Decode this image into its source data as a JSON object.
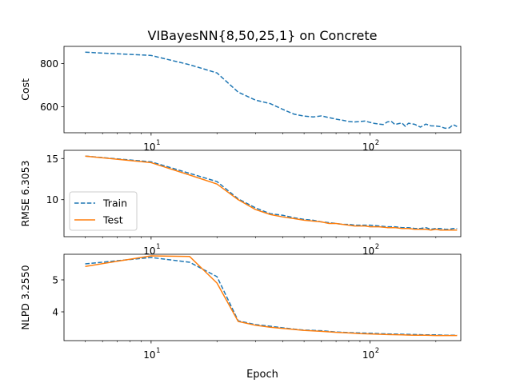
{
  "figure": {
    "title": "VIBayesNN{8,50,25,1} on Concrete",
    "xlabel": "Epoch"
  },
  "colors": {
    "train": "#1f77b4",
    "test": "#ff7f0e"
  },
  "chart_data": [
    {
      "type": "line",
      "title": "VIBayesNN{8,50,25,1} on Concrete",
      "ylabel": "Cost",
      "xscale": "log",
      "xlim": [
        4,
        260
      ],
      "ylim": [
        480,
        880
      ],
      "yticks": [
        {
          "v": 600,
          "label": "600"
        },
        {
          "v": 800,
          "label": "800"
        }
      ],
      "xticks": [
        {
          "v": 10,
          "label": "10",
          "exp": "1"
        },
        {
          "v": 100,
          "label": "10",
          "exp": "2"
        }
      ],
      "legend": null,
      "series": [
        {
          "key": "train",
          "style": "dashed",
          "x": [
            5,
            10,
            15,
            20,
            25,
            30,
            35,
            40,
            45,
            50,
            55,
            60,
            65,
            70,
            75,
            80,
            85,
            90,
            95,
            100,
            105,
            110,
            115,
            120,
            125,
            130,
            135,
            140,
            145,
            150,
            160,
            170,
            180,
            190,
            200,
            210,
            220,
            230,
            240,
            250
          ],
          "y": [
            853,
            838,
            795,
            757,
            668,
            631,
            615,
            588,
            566,
            557,
            553,
            558,
            550,
            543,
            538,
            532,
            530,
            532,
            534,
            528,
            523,
            520,
            518,
            530,
            533,
            518,
            522,
            525,
            510,
            524,
            519,
            506,
            520,
            512,
            511,
            508,
            501,
            502,
            517,
            509
          ]
        }
      ]
    },
    {
      "type": "line",
      "ylabel": "RMSE 6.3053",
      "xscale": "log",
      "xlim": [
        4,
        260
      ],
      "ylim": [
        5.5,
        16.0
      ],
      "yticks": [
        {
          "v": 10,
          "label": "10"
        },
        {
          "v": 15,
          "label": "15"
        }
      ],
      "xticks": [
        {
          "v": 10,
          "label": "10",
          "exp": "1"
        },
        {
          "v": 100,
          "label": "10",
          "exp": "2"
        }
      ],
      "legend": "center-left",
      "legend_entries": [
        {
          "series": "train",
          "label": "Train"
        },
        {
          "series": "test",
          "label": "Test"
        }
      ],
      "series": [
        {
          "key": "train",
          "name": "Train",
          "style": "dashed",
          "x": [
            5,
            10,
            15,
            20,
            25,
            30,
            35,
            40,
            45,
            50,
            55,
            60,
            65,
            70,
            75,
            80,
            85,
            90,
            95,
            100,
            110,
            120,
            130,
            140,
            150,
            160,
            170,
            180,
            190,
            200,
            210,
            220,
            230,
            240,
            250
          ],
          "y": [
            15.3,
            14.6,
            13.2,
            12.2,
            10.1,
            9.0,
            8.3,
            8.1,
            7.8,
            7.6,
            7.5,
            7.3,
            7.2,
            7.1,
            7.0,
            7.0,
            6.9,
            6.9,
            6.9,
            6.9,
            6.8,
            6.7,
            6.7,
            6.6,
            6.6,
            6.5,
            6.5,
            6.6,
            6.4,
            6.5,
            6.5,
            6.4,
            6.4,
            6.5,
            6.5
          ]
        },
        {
          "key": "test",
          "name": "Test",
          "style": "solid",
          "x": [
            5,
            10,
            15,
            20,
            25,
            30,
            35,
            40,
            45,
            50,
            55,
            60,
            65,
            70,
            75,
            80,
            85,
            90,
            95,
            100,
            110,
            120,
            130,
            140,
            150,
            160,
            170,
            180,
            190,
            200,
            210,
            220,
            230,
            240,
            250
          ],
          "y": [
            15.3,
            14.5,
            13.0,
            11.9,
            10.0,
            8.8,
            8.2,
            7.9,
            7.7,
            7.5,
            7.4,
            7.3,
            7.1,
            7.1,
            7.0,
            6.9,
            6.8,
            6.8,
            6.8,
            6.7,
            6.7,
            6.6,
            6.6,
            6.5,
            6.5,
            6.4,
            6.4,
            6.4,
            6.3,
            6.4,
            6.3,
            6.3,
            6.3,
            6.3,
            6.3
          ]
        }
      ]
    },
    {
      "type": "line",
      "ylabel": "NLPD 3.2550",
      "xscale": "log",
      "xlim": [
        4,
        260
      ],
      "ylim": [
        3.1,
        5.8
      ],
      "yticks": [
        {
          "v": 4,
          "label": "4"
        },
        {
          "v": 5,
          "label": "5"
        }
      ],
      "xticks": [
        {
          "v": 10,
          "label": "10",
          "exp": "1"
        },
        {
          "v": 100,
          "label": "10",
          "exp": "2"
        }
      ],
      "legend": null,
      "series": [
        {
          "key": "train",
          "name": "Train",
          "style": "dashed",
          "x": [
            5,
            10,
            15,
            20,
            25,
            30,
            35,
            40,
            45,
            50,
            60,
            70,
            80,
            90,
            100,
            120,
            140,
            160,
            180,
            200,
            220,
            240,
            250
          ],
          "y": [
            5.5,
            5.7,
            5.55,
            5.1,
            3.72,
            3.6,
            3.55,
            3.5,
            3.46,
            3.43,
            3.41,
            3.37,
            3.35,
            3.34,
            3.33,
            3.31,
            3.3,
            3.29,
            3.28,
            3.28,
            3.27,
            3.27,
            3.27
          ]
        },
        {
          "key": "test",
          "name": "Test",
          "style": "solid",
          "x": [
            5,
            10,
            15,
            20,
            25,
            30,
            35,
            40,
            45,
            50,
            60,
            70,
            80,
            90,
            100,
            120,
            140,
            160,
            180,
            200,
            220,
            240,
            250
          ],
          "y": [
            5.42,
            5.75,
            5.73,
            4.9,
            3.7,
            3.58,
            3.52,
            3.48,
            3.45,
            3.42,
            3.39,
            3.36,
            3.34,
            3.32,
            3.31,
            3.29,
            3.28,
            3.27,
            3.27,
            3.26,
            3.26,
            3.26,
            3.26
          ]
        }
      ]
    }
  ]
}
